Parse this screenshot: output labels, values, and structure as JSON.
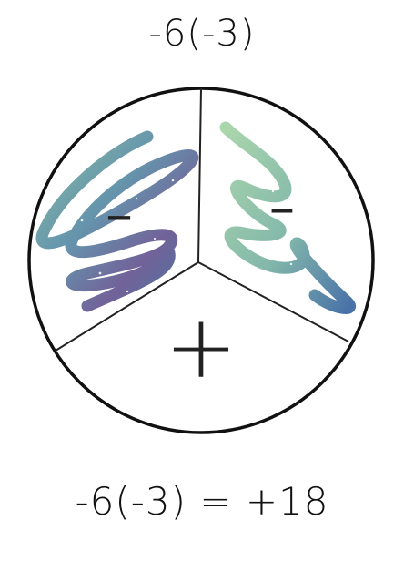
{
  "problem": {
    "expression": "-6(-3)"
  },
  "diagram": {
    "sections": [
      {
        "sign": "-",
        "content": "scribble-left"
      },
      {
        "sign": "-",
        "content": "scribble-right"
      },
      {
        "sign": "+"
      }
    ],
    "scribble_colors": [
      "#9fcfa6",
      "#4f7fa8",
      "#6d4f8c"
    ]
  },
  "answer": {
    "equation": "-6(-3) = +18"
  }
}
